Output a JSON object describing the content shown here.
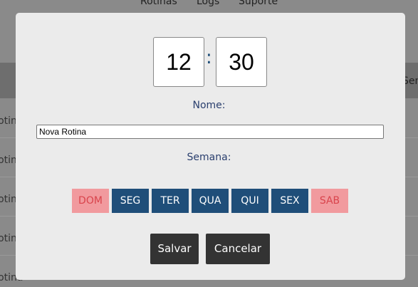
{
  "nav": [
    "Rotinas",
    "Logs",
    "Suporte"
  ],
  "background": {
    "column_right": "Semana",
    "rows": [
      "Rotina",
      "Rotina",
      "Rotina",
      "Rotina",
      "Rotina"
    ]
  },
  "modal": {
    "hour": "12",
    "separator": ":",
    "minute": "30",
    "name_label": "Nome:",
    "name_value": "Nova Rotina",
    "week_label": "Semana:",
    "days": [
      {
        "label": "DOM",
        "selected": false
      },
      {
        "label": "SEG",
        "selected": true
      },
      {
        "label": "TER",
        "selected": true
      },
      {
        "label": "QUA",
        "selected": true
      },
      {
        "label": "QUI",
        "selected": true
      },
      {
        "label": "SEX",
        "selected": true
      },
      {
        "label": "SAB",
        "selected": false
      }
    ],
    "save": "Salvar",
    "cancel": "Cancelar"
  }
}
